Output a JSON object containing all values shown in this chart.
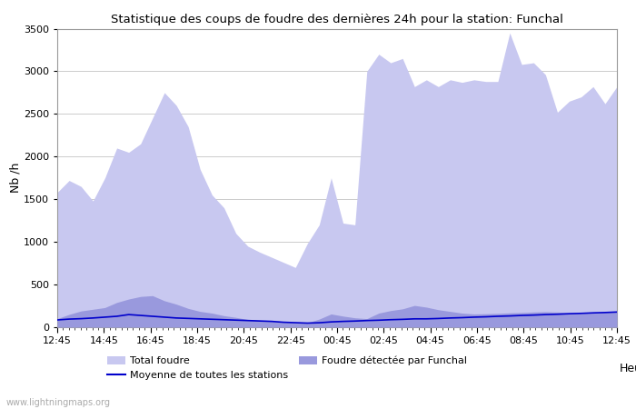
{
  "title": "Statistique des coups de foudre des dernières 24h pour la station: Funchal",
  "xlabel": "Heure",
  "ylabel": "Nb /h",
  "watermark": "www.lightningmaps.org",
  "ylim": [
    0,
    3500
  ],
  "yticks": [
    0,
    500,
    1000,
    1500,
    2000,
    2500,
    3000,
    3500
  ],
  "xtick_labels": [
    "12:45",
    "14:45",
    "16:45",
    "18:45",
    "20:45",
    "22:45",
    "00:45",
    "02:45",
    "04:45",
    "06:45",
    "08:45",
    "10:45",
    "12:45"
  ],
  "color_total": "#c8c8f0",
  "color_funchal": "#9999dd",
  "color_moyenne": "#0000cc",
  "bg_color": "#ffffff",
  "grid_color": "#cccccc",
  "total_foudre": [
    1580,
    1720,
    1650,
    1480,
    1750,
    2100,
    2050,
    2150,
    2450,
    2750,
    2600,
    2350,
    1850,
    1550,
    1400,
    1100,
    950,
    880,
    820,
    760,
    700,
    980,
    1200,
    1750,
    1220,
    1200,
    3000,
    3200,
    3100,
    3150,
    2820,
    2900,
    2820,
    2900,
    2870,
    2900,
    2880,
    2880,
    3450,
    3080,
    3100,
    2960,
    2520,
    2650,
    2700,
    2820,
    2620,
    2820
  ],
  "funchal": [
    100,
    150,
    190,
    210,
    230,
    290,
    330,
    360,
    370,
    310,
    270,
    220,
    185,
    165,
    135,
    115,
    90,
    80,
    70,
    62,
    56,
    52,
    95,
    155,
    130,
    110,
    100,
    165,
    195,
    215,
    255,
    235,
    205,
    185,
    165,
    155,
    158,
    162,
    168,
    172,
    178,
    182,
    178,
    168,
    162,
    172,
    178,
    188
  ],
  "moyenne": [
    85,
    95,
    100,
    108,
    118,
    128,
    148,
    138,
    128,
    118,
    108,
    103,
    98,
    93,
    88,
    83,
    78,
    73,
    68,
    58,
    53,
    48,
    52,
    62,
    68,
    72,
    78,
    82,
    88,
    92,
    98,
    98,
    102,
    108,
    112,
    118,
    122,
    128,
    132,
    138,
    142,
    148,
    152,
    158,
    162,
    168,
    172,
    178
  ]
}
